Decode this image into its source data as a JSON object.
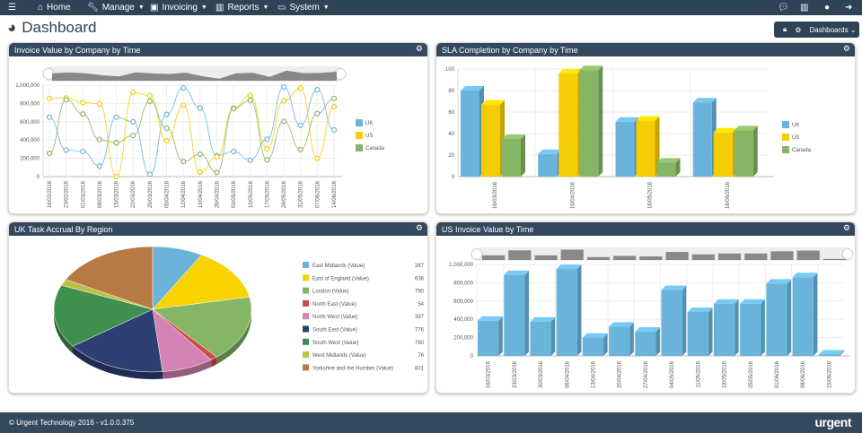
{
  "nav": {
    "items": [
      {
        "label": "Home",
        "icon": "home-icon"
      },
      {
        "label": "Manage",
        "icon": "wrench-icon"
      },
      {
        "label": "Invoicing",
        "icon": "money-icon"
      },
      {
        "label": "Reports",
        "icon": "bar-chart-icon"
      },
      {
        "label": "System",
        "icon": "monitor-icon"
      }
    ]
  },
  "page": {
    "title": "Dashboard",
    "dashboards_label": "Dashboards"
  },
  "colors": {
    "uk": "#6ab4dc",
    "us": "#f5cd05",
    "canada": "#86b566",
    "nav": "#2f4357"
  },
  "panels": {
    "invoice": {
      "title": "Invoice Value by Company by Time"
    },
    "sla": {
      "title": "SLA Completion by Company by Time"
    },
    "pie": {
      "title": "UK Task Accrual By Region"
    },
    "us": {
      "title": "US Invoice Value by Time"
    }
  },
  "chart_data": [
    {
      "type": "line",
      "title": "Invoice Value by Company by Time",
      "ylim": [
        0,
        1000000
      ],
      "yticks": [
        "0",
        "200,000",
        "400,000",
        "600,000",
        "800,000",
        "1,000,000"
      ],
      "legend": "right",
      "categories": [
        "16/02/2016",
        "23/02/2016",
        "01/03/2016",
        "08/03/2016",
        "15/03/2016",
        "22/03/2016",
        "29/03/2016",
        "05/04/2016",
        "12/04/2016",
        "19/04/2016",
        "26/04/2016",
        "03/05/2016",
        "10/05/2016",
        "17/05/2016",
        "24/05/2016",
        "31/05/2016",
        "07/06/2016",
        "14/06/2016"
      ],
      "series": [
        {
          "name": "UK",
          "values": [
            650000,
            290000,
            275000,
            115000,
            650000,
            600000,
            25000,
            680000,
            970000,
            750000,
            230000,
            275000,
            180000,
            410000,
            980000,
            560000,
            950000,
            510000
          ]
        },
        {
          "name": "US",
          "values": [
            855000,
            860000,
            810000,
            795000,
            0,
            920000,
            885000,
            390000,
            780000,
            50000,
            215000,
            750000,
            890000,
            305000,
            830000,
            965000,
            200000,
            765000
          ]
        },
        {
          "name": "Canada",
          "values": [
            255000,
            840000,
            685000,
            405000,
            370000,
            450000,
            825000,
            530000,
            165000,
            245000,
            45000,
            745000,
            835000,
            185000,
            605000,
            295000,
            690000,
            855000
          ]
        }
      ]
    },
    {
      "type": "bar",
      "title": "SLA Completion by Company by Time",
      "ylim": [
        0,
        100
      ],
      "yticks": [
        "0",
        "20",
        "40",
        "60",
        "80",
        "100"
      ],
      "legend": "right",
      "categories": [
        "16/03/2016",
        "16/04/2016",
        "16/05/2016",
        "16/06/2016"
      ],
      "series": [
        {
          "name": "UK",
          "values": [
            80,
            21,
            51,
            69
          ]
        },
        {
          "name": "US",
          "values": [
            67,
            96,
            52,
            41
          ]
        },
        {
          "name": "Canada",
          "values": [
            35,
            99,
            13,
            43
          ]
        }
      ]
    },
    {
      "type": "pie",
      "title": "UK Task Accrual By Region",
      "legend": "right",
      "slices": [
        {
          "label": "East Midlands (Value)",
          "value": 387,
          "color": "#6ab4dc"
        },
        {
          "label": "East of England (Value)",
          "value": 636,
          "color": "#f9d300"
        },
        {
          "label": "London (Value)",
          "value": 790,
          "color": "#86b566"
        },
        {
          "label": "North East (Value)",
          "value": 54,
          "color": "#d04a4a"
        },
        {
          "label": "North West (Value)",
          "value": 397,
          "color": "#d384b4"
        },
        {
          "label": "South East (Value)",
          "value": 776,
          "color": "#2c3e72"
        },
        {
          "label": "South West (Value)",
          "value": 760,
          "color": "#3f8f4e"
        },
        {
          "label": "West Midlands (Value)",
          "value": 76,
          "color": "#bfbf3f"
        },
        {
          "label": "Yorkshire and the Humber (Value)",
          "value": 801,
          "color": "#b87a45"
        }
      ]
    },
    {
      "type": "bar",
      "title": "US Invoice Value by Time",
      "ylim": [
        0,
        1000000
      ],
      "yticks": [
        "0",
        "200,000",
        "400,000",
        "600,000",
        "800,000",
        "1,000,000"
      ],
      "categories": [
        "16/03/2016",
        "23/03/2016",
        "30/03/2016",
        "06/04/2016",
        "13/04/2016",
        "20/04/2016",
        "27/04/2016",
        "04/05/2016",
        "11/05/2016",
        "18/05/2016",
        "25/05/2016",
        "01/06/2016",
        "08/06/2016",
        "15/06/2016"
      ],
      "series": [
        {
          "values": [
            385000,
            885000,
            375000,
            950000,
            200000,
            320000,
            265000,
            720000,
            480000,
            570000,
            570000,
            790000,
            860000,
            15000
          ]
        }
      ]
    }
  ],
  "footer": {
    "copyright": "© Urgent Technology 2016 - v1.0.0.375",
    "logo": "urgent"
  }
}
